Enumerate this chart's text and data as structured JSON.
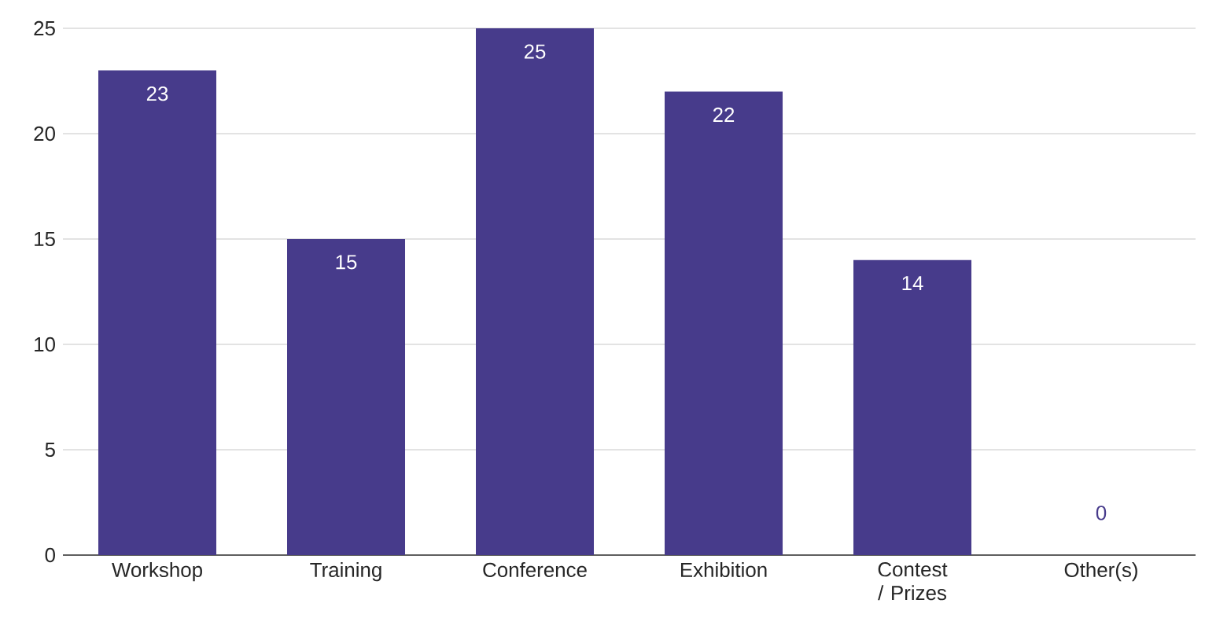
{
  "chart_data": {
    "type": "bar",
    "categories": [
      "Workshop",
      "Training",
      "Conference",
      "Exhibition",
      "Contest / Prizes",
      "Other(s)"
    ],
    "values": [
      23,
      15,
      25,
      22,
      14,
      0
    ],
    "color": "#473b8b",
    "ylim": [
      0,
      25
    ],
    "yticks": [
      0,
      5,
      10,
      15,
      20,
      25
    ],
    "grid": "y",
    "data_labels": true
  }
}
